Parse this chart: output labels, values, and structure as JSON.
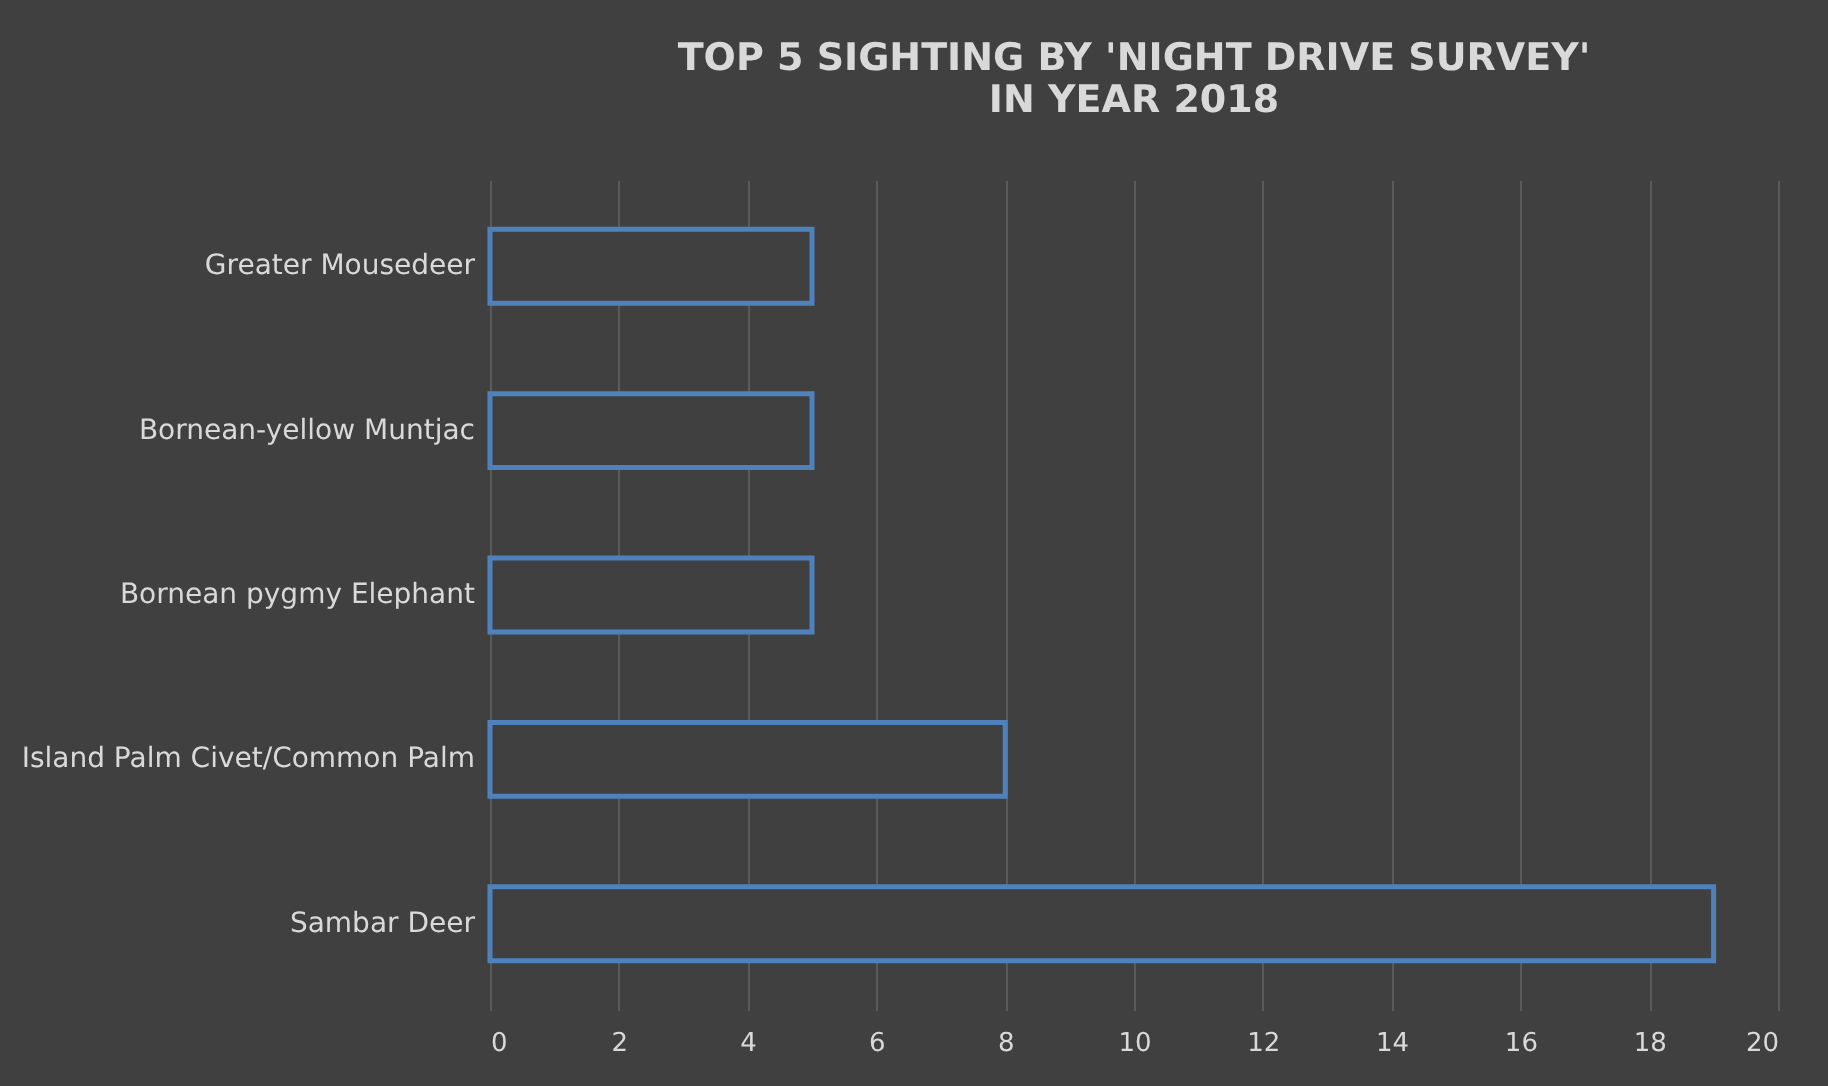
{
  "chart_data": {
    "type": "bar",
    "orientation": "horizontal",
    "title": "TOP 5 SIGHTING BY 'NIGHT DRIVE SURVEY'\nIN YEAR 2018",
    "categories": [
      "Greater Mousedeer",
      "Bornean-yellow Muntjac",
      "Bornean pygmy Elephant",
      "Island Palm Civet/Common Palm",
      "Sambar Deer"
    ],
    "values": [
      5,
      5,
      5,
      8,
      19
    ],
    "color": "#4f81bd",
    "xlim": [
      0,
      20
    ],
    "xticks": [
      0,
      2,
      4,
      6,
      8,
      10,
      12,
      14,
      16,
      18,
      20
    ],
    "grid": "x"
  }
}
